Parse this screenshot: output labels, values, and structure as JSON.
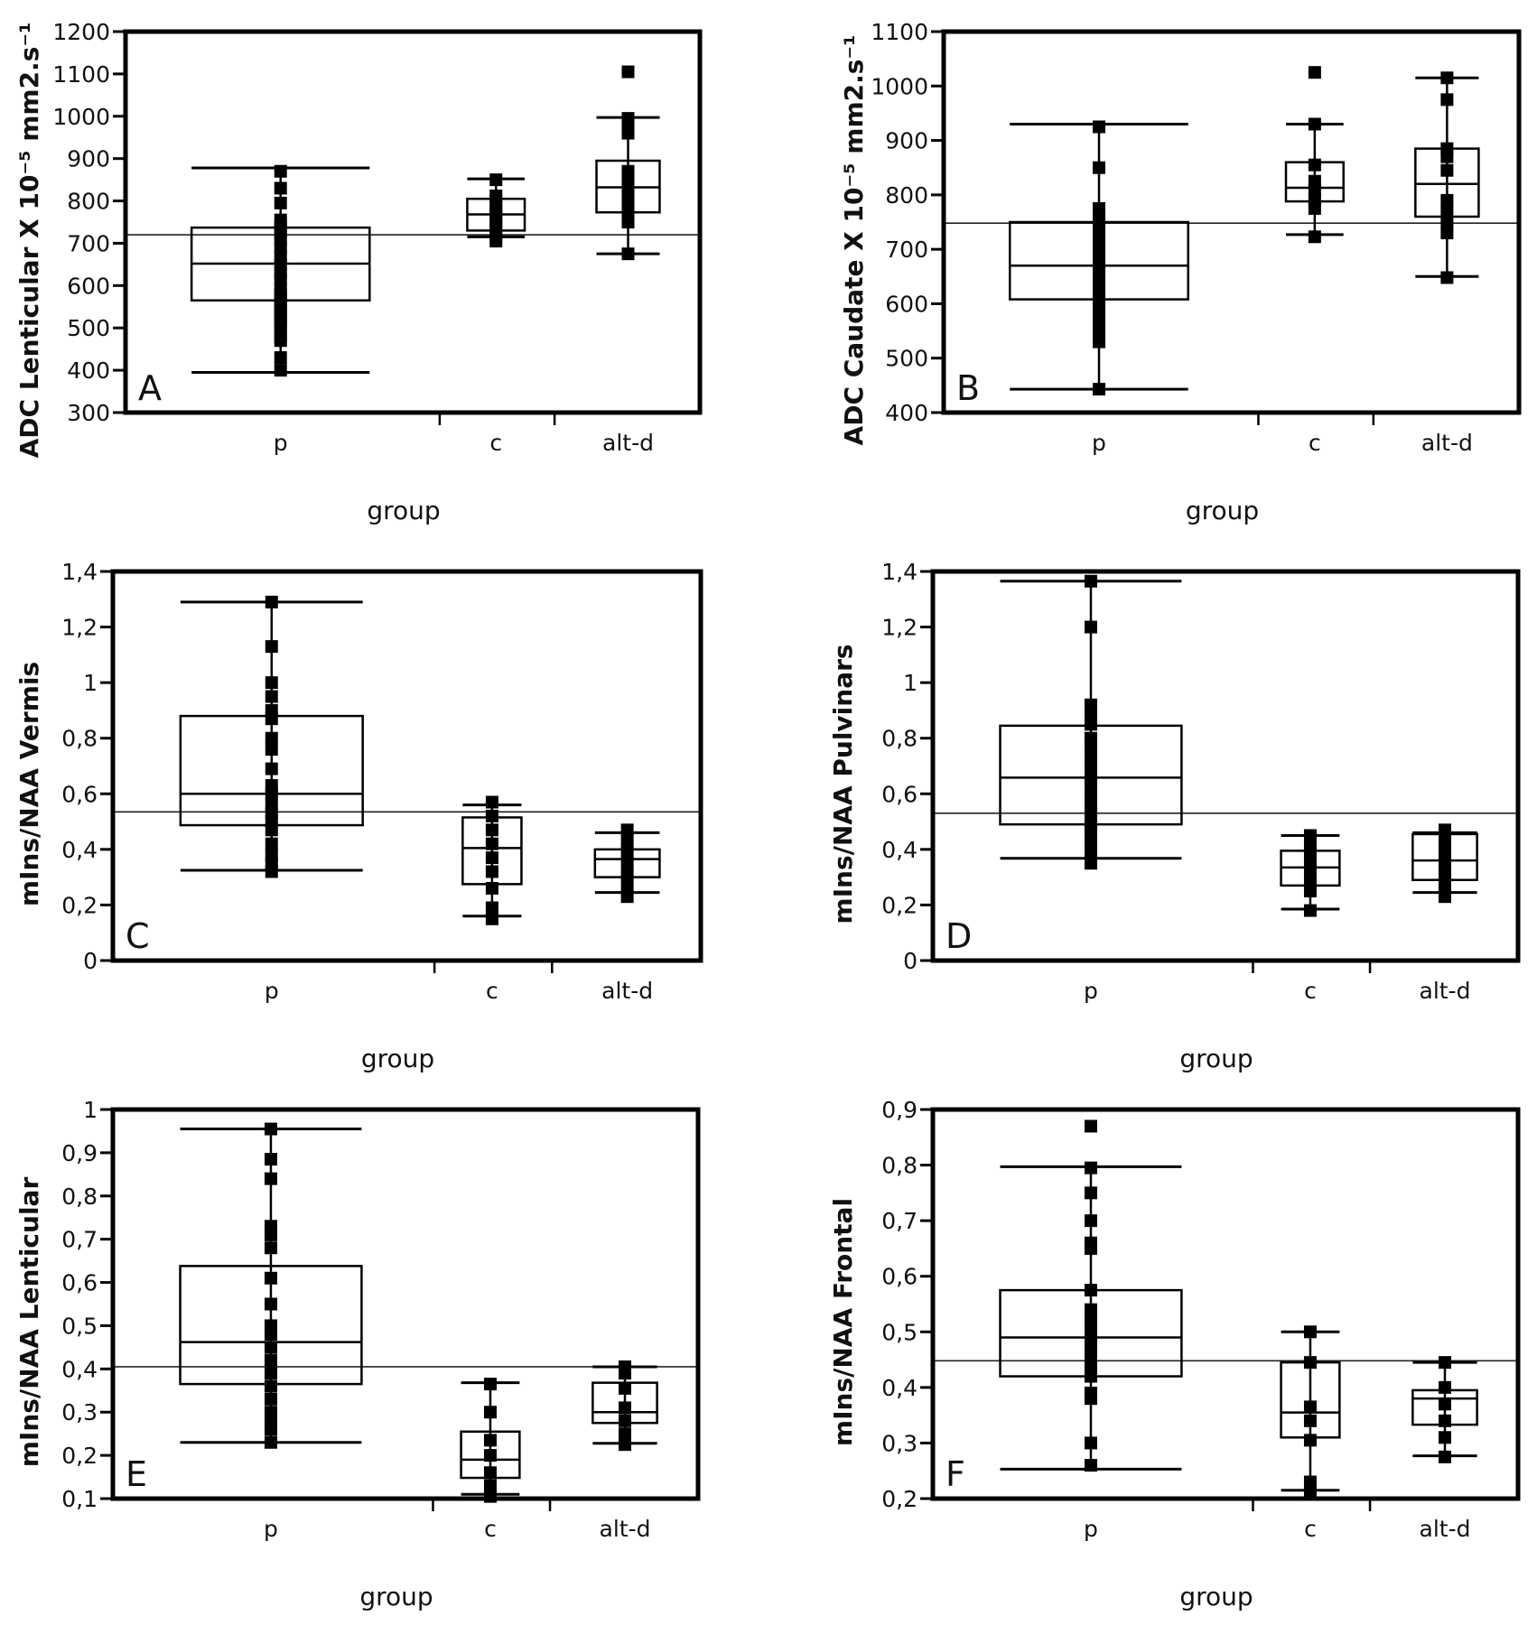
{
  "figure": {
    "categories": [
      "p",
      "c",
      "alt-d"
    ],
    "xlabel": "group"
  },
  "chart_data": [
    {
      "type": "box",
      "panel": "A",
      "ylabel": "ADC Lenticular X 10⁻⁵ mm2.s⁻¹",
      "xlabel": "group",
      "categories": [
        "p",
        "c",
        "alt-d"
      ],
      "ylim": [
        300,
        1200
      ],
      "yticks": [
        300,
        400,
        500,
        600,
        700,
        800,
        900,
        1000,
        1100,
        1200
      ],
      "ytick_labels": [
        "300",
        "400",
        "500",
        "600",
        "700",
        "800",
        "900",
        "1000",
        "1100",
        "1200"
      ],
      "reference_line": 720,
      "series": [
        {
          "name": "p",
          "whisker_low": 395,
          "q1": 565,
          "median": 652,
          "q3": 737,
          "whisker_high": 878,
          "points": [
            430,
            470,
            480,
            500,
            510,
            520,
            530,
            540,
            550,
            560,
            570,
            580,
            590,
            615,
            630,
            650,
            670,
            690,
            710,
            725,
            740,
            755,
            795,
            830,
            870,
            400
          ]
        },
        {
          "name": "c",
          "whisker_low": 715,
          "q1": 730,
          "median": 768,
          "q3": 805,
          "whisker_high": 852,
          "points": [
            705,
            715,
            730,
            745,
            760,
            770,
            785,
            800,
            812,
            850
          ]
        },
        {
          "name": "alt-d",
          "whisker_low": 675,
          "q1": 773,
          "median": 832,
          "q3": 895,
          "whisker_high": 997,
          "points": [
            675,
            750,
            770,
            790,
            810,
            830,
            850,
            870,
            960,
            980,
            995,
            1105
          ]
        }
      ]
    },
    {
      "type": "box",
      "panel": "B",
      "ylabel": "ADC Caudate X 10⁻⁵ mm2.s⁻¹",
      "xlabel": "group",
      "categories": [
        "p",
        "c",
        "alt-d"
      ],
      "ylim": [
        400,
        1100
      ],
      "yticks": [
        400,
        500,
        600,
        700,
        800,
        900,
        1000,
        1100
      ],
      "ytick_labels": [
        "400",
        "500",
        "600",
        "700",
        "800",
        "900",
        "1000",
        "1100"
      ],
      "reference_line": 748,
      "series": [
        {
          "name": "p",
          "whisker_low": 443,
          "q1": 608,
          "median": 670,
          "q3": 750,
          "whisker_high": 930,
          "points": [
            443,
            530,
            550,
            570,
            590,
            610,
            630,
            650,
            670,
            690,
            705,
            720,
            740,
            750,
            760,
            775,
            850,
            925
          ]
        },
        {
          "name": "c",
          "whisker_low": 727,
          "q1": 788,
          "median": 813,
          "q3": 860,
          "whisker_high": 930,
          "points": [
            723,
            775,
            790,
            810,
            825,
            855,
            930,
            1025
          ]
        },
        {
          "name": "alt-d",
          "whisker_low": 650,
          "q1": 760,
          "median": 820,
          "q3": 885,
          "whisker_high": 1015,
          "points": [
            648,
            730,
            750,
            770,
            790,
            845,
            870,
            885,
            975,
            1015
          ]
        }
      ]
    },
    {
      "type": "box",
      "panel": "C",
      "ylabel": "mIns/NAA Vermis",
      "xlabel": "group",
      "categories": [
        "p",
        "c",
        "alt-d"
      ],
      "ylim": [
        0,
        1.4
      ],
      "yticks": [
        0,
        0.2,
        0.4,
        0.6,
        0.8,
        1.0,
        1.2,
        1.4
      ],
      "ytick_labels": [
        "0",
        "0,2",
        "0,4",
        "0,6",
        "0,8",
        "1",
        "1,2",
        "1,4"
      ],
      "reference_line": 0.535,
      "series": [
        {
          "name": "p",
          "whisker_low": 0.325,
          "q1": 0.487,
          "median": 0.6,
          "q3": 0.88,
          "whisker_high": 1.29,
          "points": [
            0.32,
            0.35,
            0.38,
            0.42,
            0.47,
            0.5,
            0.53,
            0.56,
            0.6,
            0.63,
            0.69,
            0.76,
            0.8,
            0.87,
            0.9,
            0.95,
            1.0,
            1.13,
            1.29
          ]
        },
        {
          "name": "c",
          "whisker_low": 0.16,
          "q1": 0.275,
          "median": 0.405,
          "q3": 0.515,
          "whisker_high": 0.56,
          "points": [
            0.15,
            0.19,
            0.26,
            0.32,
            0.37,
            0.42,
            0.47,
            0.52,
            0.57
          ]
        },
        {
          "name": "alt-d",
          "whisker_low": 0.245,
          "q1": 0.3,
          "median": 0.365,
          "q3": 0.4,
          "whisker_high": 0.46,
          "points": [
            0.23,
            0.27,
            0.31,
            0.35,
            0.39,
            0.43,
            0.47
          ]
        }
      ]
    },
    {
      "type": "box",
      "panel": "D",
      "ylabel": "mIns/NAA Pulvinars",
      "xlabel": "group",
      "categories": [
        "p",
        "c",
        "alt-d"
      ],
      "ylim": [
        0,
        1.4
      ],
      "yticks": [
        0,
        0.2,
        0.4,
        0.6,
        0.8,
        1.0,
        1.2,
        1.4
      ],
      "ytick_labels": [
        "0",
        "0,2",
        "0,4",
        "0,6",
        "0,8",
        "1",
        "1,2",
        "1,4"
      ],
      "reference_line": 0.53,
      "series": [
        {
          "name": "p",
          "whisker_low": 0.368,
          "q1": 0.49,
          "median": 0.658,
          "q3": 0.845,
          "whisker_high": 1.365,
          "points": [
            0.35,
            0.39,
            0.43,
            0.46,
            0.5,
            0.54,
            0.58,
            0.62,
            0.66,
            0.7,
            0.74,
            0.78,
            0.8,
            0.85,
            0.89,
            0.92,
            1.2,
            1.365
          ]
        },
        {
          "name": "c",
          "whisker_low": 0.185,
          "q1": 0.27,
          "median": 0.335,
          "q3": 0.395,
          "whisker_high": 0.45,
          "points": [
            0.18,
            0.25,
            0.29,
            0.33,
            0.37,
            0.41,
            0.45
          ]
        },
        {
          "name": "alt-d",
          "whisker_low": 0.245,
          "q1": 0.29,
          "median": 0.36,
          "q3": 0.455,
          "whisker_high": 0.46,
          "points": [
            0.23,
            0.27,
            0.31,
            0.35,
            0.39,
            0.43,
            0.47
          ]
        }
      ]
    },
    {
      "type": "box",
      "panel": "E",
      "ylabel": "mIns/NAA Lenticular",
      "xlabel": "group",
      "categories": [
        "p",
        "c",
        "alt-d"
      ],
      "ylim": [
        0.1,
        1.0
      ],
      "yticks": [
        0.1,
        0.2,
        0.3,
        0.4,
        0.5,
        0.6,
        0.7,
        0.8,
        0.9,
        1.0
      ],
      "ytick_labels": [
        "0,1",
        "0,2",
        "0,3",
        "0,4",
        "0,5",
        "0,6",
        "0,7",
        "0,8",
        "0,9",
        "1"
      ],
      "reference_line": 0.405,
      "series": [
        {
          "name": "p",
          "whisker_low": 0.23,
          "q1": 0.365,
          "median": 0.462,
          "q3": 0.638,
          "whisker_high": 0.955,
          "points": [
            0.23,
            0.26,
            0.28,
            0.3,
            0.33,
            0.36,
            0.39,
            0.42,
            0.45,
            0.48,
            0.5,
            0.55,
            0.61,
            0.68,
            0.71,
            0.73,
            0.84,
            0.885,
            0.955
          ]
        },
        {
          "name": "c",
          "whisker_low": 0.11,
          "q1": 0.148,
          "median": 0.19,
          "q3": 0.255,
          "whisker_high": 0.368,
          "points": [
            0.105,
            0.13,
            0.16,
            0.2,
            0.235,
            0.3,
            0.365
          ]
        },
        {
          "name": "alt-d",
          "whisker_low": 0.228,
          "q1": 0.275,
          "median": 0.3,
          "q3": 0.368,
          "whisker_high": 0.405,
          "points": [
            0.225,
            0.25,
            0.28,
            0.31,
            0.355,
            0.39,
            0.405
          ]
        }
      ]
    },
    {
      "type": "box",
      "panel": "F",
      "ylabel": "mIns/NAA Frontal",
      "xlabel": "group",
      "categories": [
        "p",
        "c",
        "alt-d"
      ],
      "ylim": [
        0.2,
        0.9
      ],
      "yticks": [
        0.2,
        0.3,
        0.4,
        0.5,
        0.6,
        0.7,
        0.8,
        0.9
      ],
      "ytick_labels": [
        "0,2",
        "0,3",
        "0,4",
        "0,5",
        "0,6",
        "0,7",
        "0,8",
        "0,9"
      ],
      "reference_line": 0.448,
      "series": [
        {
          "name": "p",
          "whisker_low": 0.253,
          "q1": 0.42,
          "median": 0.49,
          "q3": 0.575,
          "whisker_high": 0.797,
          "points": [
            0.26,
            0.3,
            0.38,
            0.39,
            0.42,
            0.44,
            0.46,
            0.48,
            0.5,
            0.52,
            0.54,
            0.575,
            0.65,
            0.66,
            0.7,
            0.75,
            0.795,
            0.87
          ]
        },
        {
          "name": "c",
          "whisker_low": 0.215,
          "q1": 0.31,
          "median": 0.355,
          "q3": 0.445,
          "whisker_high": 0.5,
          "points": [
            0.21,
            0.23,
            0.305,
            0.34,
            0.365,
            0.445,
            0.5
          ]
        },
        {
          "name": "alt-d",
          "whisker_low": 0.277,
          "q1": 0.333,
          "median": 0.38,
          "q3": 0.395,
          "whisker_high": 0.445,
          "points": [
            0.275,
            0.31,
            0.34,
            0.37,
            0.4,
            0.445
          ]
        }
      ]
    }
  ]
}
